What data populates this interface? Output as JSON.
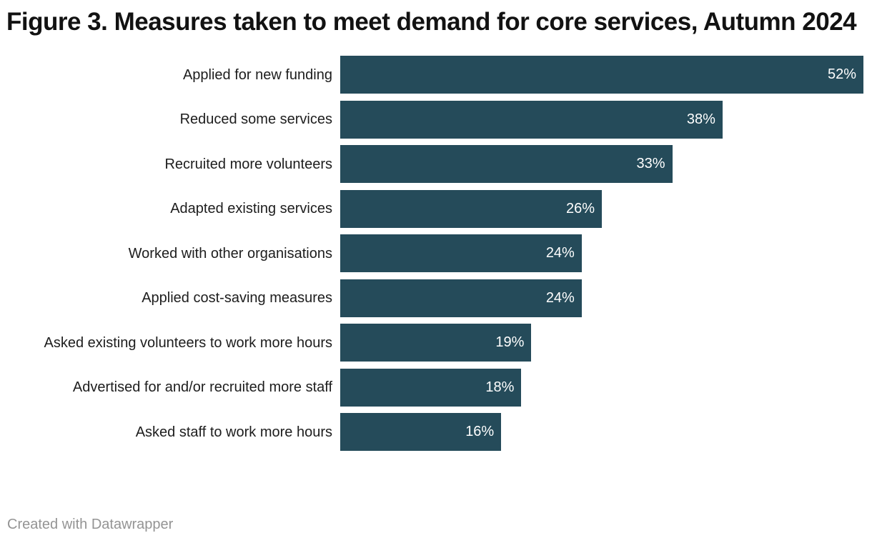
{
  "header": {
    "title": "Figure 3. Measures taken to meet demand for core services, Autumn 2024"
  },
  "chart_data": {
    "type": "bar",
    "orientation": "horizontal",
    "title": "Figure 3. Measures taken to meet demand for core services, Autumn 2024",
    "categories": [
      "Applied for new funding",
      "Reduced some services",
      "Recruited more volunteers",
      "Adapted existing services",
      "Worked with other organisations",
      "Applied cost-saving measures",
      "Asked existing volunteers to work more hours",
      "Advertised for and/or recruited more staff",
      "Asked staff to work more hours"
    ],
    "values": [
      52,
      38,
      33,
      26,
      24,
      24,
      19,
      18,
      16
    ],
    "value_suffix": "%",
    "xlabel": "",
    "ylabel": "",
    "xlim": [
      0,
      52
    ],
    "grid": false,
    "legend": false,
    "bar_color": "#254b5a",
    "value_label_color": "#ffffff",
    "category_label_color": "#1d1d1d",
    "title_color": "#121212"
  },
  "footer": {
    "attribution": "Created with Datawrapper"
  }
}
